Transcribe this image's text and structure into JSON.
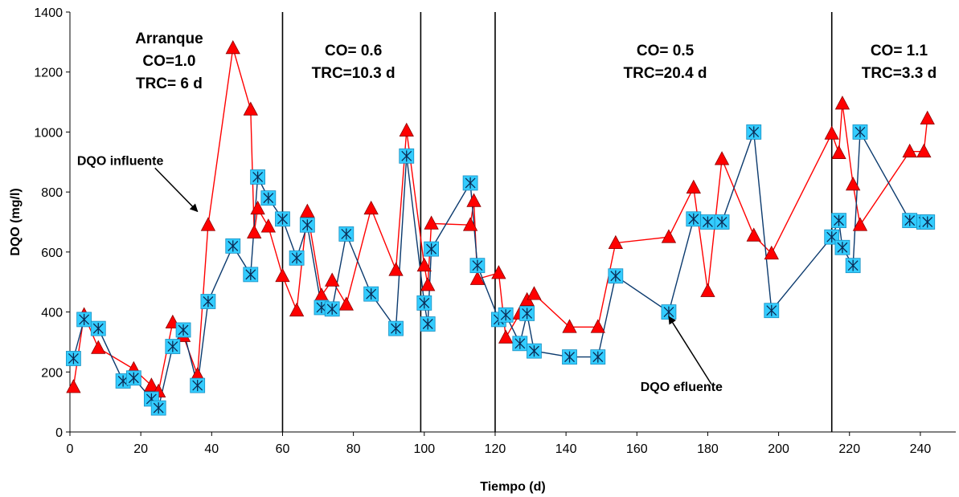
{
  "chart_data": {
    "type": "line",
    "title": "",
    "xlabel": "Tiempo (d)",
    "ylabel": "DQO (mg/l)",
    "xlim": [
      0,
      250
    ],
    "ylim": [
      0,
      1400
    ],
    "xticks": [
      0,
      20,
      40,
      60,
      80,
      100,
      120,
      140,
      160,
      180,
      200,
      220,
      240
    ],
    "yticks": [
      0,
      200,
      400,
      600,
      800,
      1000,
      1200,
      1400
    ],
    "grid": false,
    "legend": "none",
    "series": [
      {
        "name": "DQO influente",
        "color": "#ff0000",
        "marker_fill": "#ff0000",
        "marker": "triangle",
        "x": [
          1,
          4,
          8,
          18,
          23,
          25,
          29,
          32,
          36,
          39,
          46,
          51,
          52,
          53,
          56,
          60,
          64,
          67,
          71,
          74,
          78,
          85,
          92,
          95,
          100,
          101,
          102,
          113,
          114,
          115,
          121,
          123,
          127,
          129,
          131,
          141,
          149,
          154,
          169,
          176,
          180,
          184,
          193,
          198,
          215,
          217,
          218,
          221,
          223,
          237,
          241,
          242
        ],
        "y": [
          150,
          390,
          280,
          210,
          155,
          135,
          365,
          320,
          190,
          690,
          1280,
          1075,
          665,
          745,
          685,
          520,
          405,
          735,
          455,
          505,
          425,
          745,
          540,
          1005,
          555,
          490,
          695,
          690,
          770,
          510,
          530,
          315,
          395,
          440,
          460,
          350,
          350,
          630,
          650,
          815,
          470,
          910,
          655,
          595,
          995,
          930,
          1095,
          825,
          690,
          935,
          935,
          1045
        ]
      },
      {
        "name": "DQO efluente",
        "color": "#0b3a6e",
        "marker_fill": "#33ccff",
        "marker": "square-asterisk",
        "x": [
          1,
          4,
          8,
          15,
          18,
          23,
          25,
          29,
          32,
          36,
          39,
          46,
          51,
          53,
          56,
          60,
          64,
          67,
          71,
          74,
          78,
          85,
          92,
          95,
          100,
          101,
          102,
          113,
          115,
          121,
          123,
          127,
          129,
          131,
          141,
          149,
          154,
          169,
          176,
          180,
          184,
          193,
          198,
          215,
          217,
          218,
          221,
          223,
          237,
          241,
          242
        ],
        "y": [
          245,
          375,
          345,
          170,
          180,
          110,
          80,
          285,
          340,
          155,
          435,
          620,
          525,
          850,
          780,
          710,
          580,
          690,
          415,
          410,
          660,
          460,
          345,
          920,
          430,
          360,
          610,
          830,
          555,
          375,
          390,
          295,
          395,
          270,
          250,
          250,
          520,
          400,
          710,
          700,
          700,
          1000,
          405,
          650,
          705,
          615,
          555,
          1000,
          705,
          700,
          700
        ]
      }
    ],
    "phase_boundaries": [
      60,
      99,
      120,
      215
    ],
    "phase_labels": [
      {
        "lines": [
          "Arranque",
          "CO=1.0",
          "TRC= 6 d"
        ],
        "x": 28,
        "y": 1295
      },
      {
        "lines": [
          "CO= 0.6",
          "TRC=10.3 d"
        ],
        "x": 80,
        "y": 1255
      },
      {
        "lines": [
          "CO= 0.5",
          "TRC=20.4 d"
        ],
        "x": 168,
        "y": 1255
      },
      {
        "lines": [
          "CO= 1.1",
          "TRC=3.3 d"
        ],
        "x": 234,
        "y": 1255
      }
    ],
    "annotations": [
      {
        "text": "DQO influente",
        "text_x": 2,
        "text_y": 890,
        "arrow_from": [
          24,
          880
        ],
        "arrow_to": [
          36,
          735
        ]
      },
      {
        "text": "DQO efluente",
        "text_x": 161,
        "text_y": 137,
        "arrow_from": [
          181,
          160
        ],
        "arrow_to": [
          169,
          385
        ]
      }
    ]
  }
}
